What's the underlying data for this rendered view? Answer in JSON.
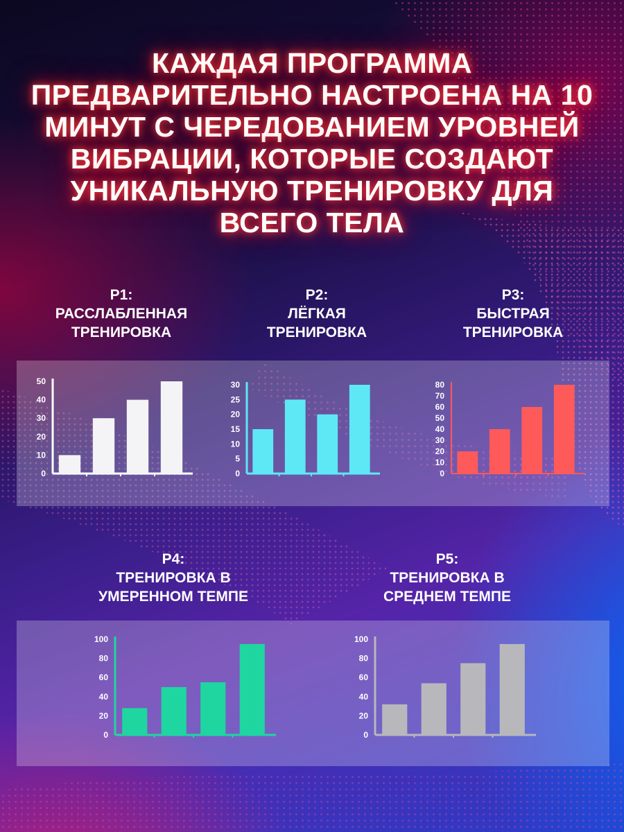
{
  "headline": "КАЖДАЯ ПРОГРАММА ПРЕДВАРИТЕЛЬНО НАСТРОЕНА НА 10 МИНУТ С ЧЕРЕДОВАНИЕМ УРОВНЕЙ ВИБРАЦИИ, КОТОРЫЕ СОЗДАЮТ УНИКАЛЬНУЮ ТРЕНИРОВКУ ДЛЯ ВСЕГО ТЕЛА",
  "programs": [
    {
      "code": "P1:",
      "name": "РАССЛАБЛЕННАЯ ТРЕНИРОВКА"
    },
    {
      "code": "P2:",
      "name": "ЛЁГКАЯ ТРЕНИРОВКА"
    },
    {
      "code": "P3:",
      "name": "БЫСТРАЯ ТРЕНИРОВКА"
    },
    {
      "code": "P4:",
      "name": "ТРЕНИРОВКА В УМЕРЕННОМ ТЕМПЕ"
    },
    {
      "code": "P5:",
      "name": "ТРЕНИРОВКА В СРЕДНЕМ ТЕМПЕ"
    }
  ],
  "colors": {
    "p1_bar": "#f4f4f6",
    "p2_bar": "#5ee8f6",
    "p3_bar": "#ff5a5a",
    "p4_bar": "#1fd6a0",
    "p5_bar": "#b8b8bc",
    "headline_glow": "#ff2a2a"
  },
  "chart_data": [
    {
      "type": "bar",
      "title": "",
      "values": [
        10,
        30,
        40,
        50
      ],
      "ylim": [
        0,
        50
      ],
      "yticks": [
        "0",
        "10",
        "20",
        "30",
        "40",
        "50"
      ],
      "axis_color": "#ffffff"
    },
    {
      "type": "bar",
      "title": "",
      "values": [
        15,
        25,
        20,
        30
      ],
      "ylim": [
        0,
        30
      ],
      "yticks": [
        "0",
        "5",
        "10",
        "15",
        "20",
        "25",
        "30"
      ],
      "axis_color": "#5ee8f6"
    },
    {
      "type": "bar",
      "title": "",
      "values": [
        20,
        40,
        60,
        80
      ],
      "ylim": [
        0,
        80
      ],
      "yticks": [
        "0",
        "10",
        "20",
        "30",
        "40",
        "50",
        "60",
        "70",
        "80"
      ],
      "axis_color": "#ff5a5a"
    },
    {
      "type": "bar",
      "title": "",
      "values": [
        28,
        50,
        55,
        95
      ],
      "ylim": [
        0,
        100
      ],
      "yticks": [
        "0",
        "20",
        "40",
        "60",
        "80",
        "100"
      ],
      "axis_color": "#1fd6a0"
    },
    {
      "type": "bar",
      "title": "",
      "values": [
        32,
        54,
        75,
        95
      ],
      "ylim": [
        0,
        100
      ],
      "yticks": [
        "0",
        "20",
        "40",
        "60",
        "80",
        "100"
      ],
      "axis_color": "#b8b8bc"
    }
  ]
}
